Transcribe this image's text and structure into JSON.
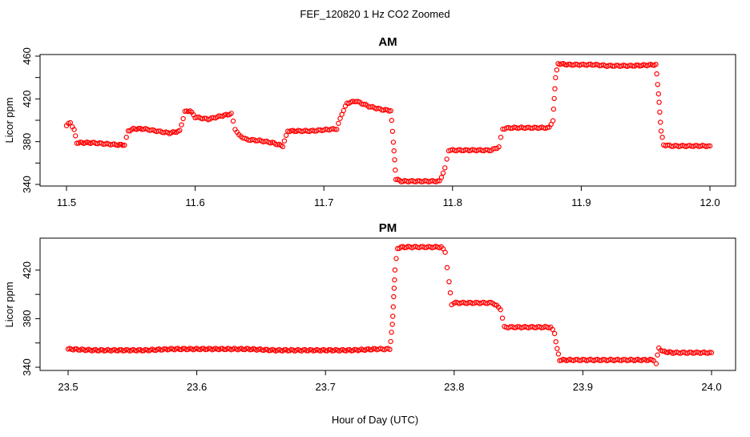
{
  "figure": {
    "title": "FEF_120820  1 Hz CO2 Zoomed",
    "xlabel": "Hour of Day (UTC)"
  },
  "style": {
    "point_color": "#ff0000",
    "frame_color": "#000000"
  },
  "chart_data": [
    {
      "type": "scatter",
      "title": "AM",
      "xlabel": "",
      "ylabel": "Licor ppm",
      "xlim": [
        11.5,
        12.0
      ],
      "ylim": [
        340,
        460
      ],
      "xticks": [
        11.5,
        11.6,
        11.7,
        11.8,
        11.9,
        12.0
      ],
      "xtick_labels": [
        "11.5",
        "11.6",
        "11.7",
        "11.8",
        "11.9",
        "12.0"
      ],
      "yticks": [
        340,
        360,
        380,
        400,
        420,
        440,
        460
      ],
      "ytick_labels": [
        "340",
        "",
        "380",
        "",
        "420",
        "",
        "460"
      ],
      "grid": false,
      "series": [
        {
          "x": [
            11.5,
            11.503,
            11.506,
            11.508,
            11.512,
            11.52,
            11.53,
            11.54,
            11.545,
            11.548,
            11.552,
            11.56,
            11.57,
            11.58,
            11.588,
            11.592,
            11.596,
            11.6,
            11.61,
            11.62,
            11.628,
            11.631,
            11.634,
            11.64,
            11.65,
            11.66,
            11.668,
            11.672,
            11.68,
            11.69,
            11.7,
            11.71,
            11.714,
            11.718,
            11.725,
            11.735,
            11.745,
            11.752,
            11.754,
            11.756,
            11.76,
            11.77,
            11.78,
            11.79,
            11.794,
            11.797,
            11.8,
            11.81,
            11.82,
            11.83,
            11.836,
            11.839,
            11.845,
            11.855,
            11.865,
            11.875,
            11.878,
            11.88,
            11.882,
            11.89,
            11.9,
            11.91,
            11.92,
            11.93,
            11.94,
            11.958,
            11.96,
            11.962,
            11.964,
            11.97,
            11.98,
            11.99,
            12.0
          ],
          "y": [
            395,
            398,
            391,
            379,
            379,
            379,
            378,
            377,
            377,
            390,
            392,
            392,
            390,
            388,
            390,
            408,
            409,
            403,
            401,
            404,
            406,
            392,
            386,
            382,
            381,
            379,
            376,
            390,
            390,
            390,
            391,
            392,
            406,
            416,
            418,
            413,
            410,
            409,
            380,
            345,
            343,
            343,
            343,
            343,
            355,
            372,
            372,
            372,
            372,
            372,
            375,
            392,
            393,
            393,
            393,
            393,
            400,
            440,
            453,
            452,
            452,
            452,
            451,
            451,
            451,
            452,
            425,
            390,
            377,
            376,
            376,
            376,
            376
          ]
        }
      ]
    },
    {
      "type": "scatter",
      "title": "PM",
      "xlabel": "Hour of Day (UTC)",
      "ylabel": "Licor ppm",
      "xlim": [
        23.5,
        24.0
      ],
      "ylim": [
        340,
        445
      ],
      "xticks": [
        23.5,
        23.6,
        23.7,
        23.8,
        23.9,
        24.0
      ],
      "xtick_labels": [
        "23.5",
        "23.6",
        "23.7",
        "23.8",
        "23.9",
        "24.0"
      ],
      "yticks": [
        340,
        360,
        380,
        400,
        420
      ],
      "ytick_labels": [
        "340",
        "",
        "380",
        "",
        "420"
      ],
      "grid": false,
      "series": [
        {
          "x": [
            23.5,
            23.52,
            23.54,
            23.56,
            23.58,
            23.6,
            23.62,
            23.64,
            23.66,
            23.68,
            23.7,
            23.72,
            23.74,
            23.75,
            23.752,
            23.754,
            23.756,
            23.76,
            23.77,
            23.78,
            23.79,
            23.793,
            23.796,
            23.798,
            23.8,
            23.81,
            23.82,
            23.83,
            23.836,
            23.839,
            23.845,
            23.855,
            23.865,
            23.875,
            23.878,
            23.88,
            23.882,
            23.89,
            23.9,
            23.91,
            23.92,
            23.93,
            23.94,
            23.955,
            23.957,
            23.959,
            23.962,
            23.97,
            23.98,
            23.99,
            24.0
          ],
          "y": [
            355,
            354,
            354,
            354,
            355,
            355,
            355,
            355,
            354,
            354,
            354,
            354,
            355,
            355,
            375,
            420,
            438,
            439,
            439,
            439,
            439,
            435,
            410,
            392,
            393,
            393,
            393,
            393,
            388,
            373,
            373,
            373,
            373,
            373,
            368,
            355,
            346,
            346,
            346,
            346,
            346,
            346,
            346,
            346,
            343,
            356,
            353,
            352,
            352,
            352,
            352
          ]
        }
      ]
    }
  ]
}
